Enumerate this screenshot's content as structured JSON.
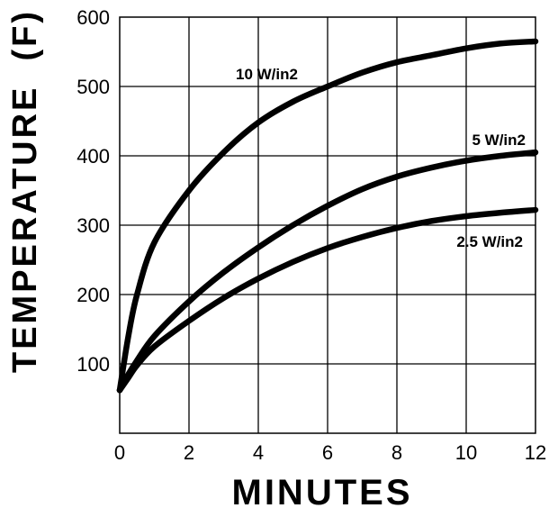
{
  "chart_data": {
    "type": "line",
    "xlabel": "MINUTES",
    "ylabel": "TEMPERATURE  (F)",
    "xlim": [
      0,
      12
    ],
    "ylim": [
      0,
      600
    ],
    "x_ticks": [
      0,
      2,
      4,
      6,
      8,
      10,
      12
    ],
    "y_ticks": [
      100,
      200,
      300,
      400,
      500,
      600
    ],
    "x_tick_labels": [
      "0",
      "2",
      "4",
      "6",
      "8",
      "10",
      "12"
    ],
    "y_tick_labels": [
      "100",
      "200",
      "300",
      "400",
      "500",
      "600"
    ],
    "grid": true,
    "legend": "inline labels",
    "x": [
      0,
      0.25,
      0.5,
      1,
      2,
      3,
      4,
      5,
      6,
      7,
      8,
      9,
      10,
      11,
      12
    ],
    "series": [
      {
        "name": "10 W/in2",
        "values": [
          62,
          140,
          200,
          275,
          350,
          405,
          448,
          478,
          500,
          520,
          535,
          545,
          555,
          562,
          565
        ]
      },
      {
        "name": "5 W/in2",
        "values": [
          62,
          85,
          105,
          140,
          190,
          232,
          268,
          300,
          328,
          352,
          370,
          383,
          393,
          400,
          405
        ]
      },
      {
        "name": "2.5 W/in2",
        "values": [
          62,
          80,
          98,
          125,
          162,
          195,
          223,
          247,
          267,
          283,
          296,
          306,
          313,
          318,
          322
        ]
      }
    ]
  }
}
